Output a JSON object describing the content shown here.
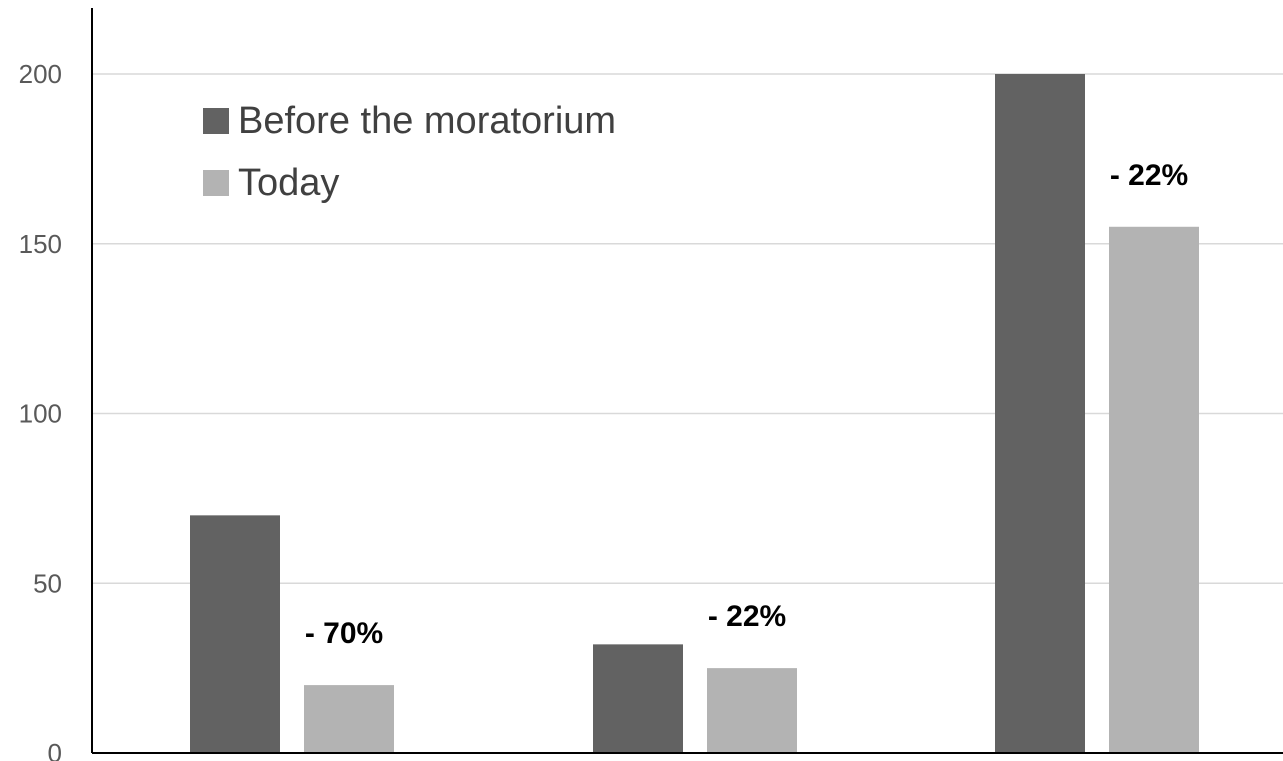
{
  "chart_data": {
    "type": "bar",
    "categories": [
      "",
      "",
      ""
    ],
    "series": [
      {
        "name": "Before the moratorium",
        "values": [
          70,
          32,
          200
        ],
        "color": "#626262"
      },
      {
        "name": "Today",
        "values": [
          20,
          25,
          155
        ],
        "color": "#b3b3b3"
      }
    ],
    "ylim": [
      0,
      220
    ],
    "yticks": [
      0,
      50,
      100,
      150,
      200
    ],
    "grid": true,
    "legend": "top-left",
    "annotations": [
      {
        "category_index": 0,
        "text": "- 70%"
      },
      {
        "category_index": 1,
        "text": "- 22%"
      },
      {
        "category_index": 2,
        "text": "- 22%"
      }
    ]
  }
}
